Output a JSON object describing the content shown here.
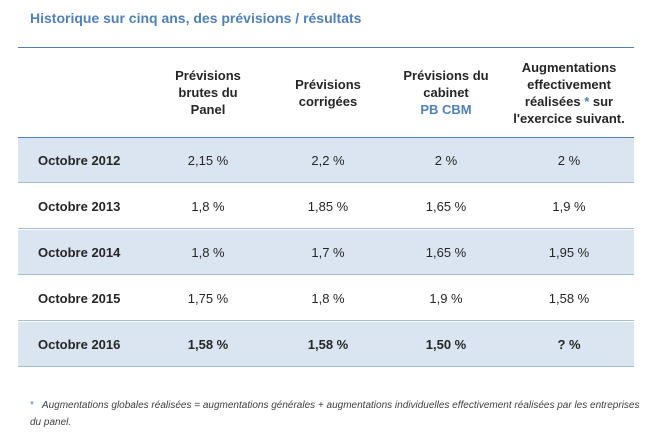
{
  "title": "Historique sur cinq ans, des prévisions / résultats",
  "colors": {
    "accent": "#4f81bd",
    "row_shade": "#dbe5f1",
    "text": "#262626"
  },
  "headers": {
    "col1": [
      "Prévisions",
      "brutes du",
      "Panel"
    ],
    "col2": [
      "Prévisions",
      "corrigées"
    ],
    "col3": [
      "Prévisions du",
      "cabinet"
    ],
    "col3_accent": "PB CBM",
    "col4_line1": "Augmentations",
    "col4_line2": "effectivement",
    "col4_line3_pre": "réalisées",
    "col4_star": "*",
    "col4_line3_post": "sur",
    "col4_line4": "l'exercice suivant."
  },
  "rows": [
    {
      "label": "Octobre 2012",
      "v1": "2,15 %",
      "v2": "2,2 %",
      "v3": "2 %",
      "v4": "2 %"
    },
    {
      "label": "Octobre 2013",
      "v1": "1,8 %",
      "v2": "1,85 %",
      "v3": "1,65 %",
      "v4": "1,9 %"
    },
    {
      "label": "Octobre 2014",
      "v1": "1,8 %",
      "v2": "1,7 %",
      "v3": "1,65 %",
      "v4": "1,95 %"
    },
    {
      "label": "Octobre 2015",
      "v1": "1,75 %",
      "v2": "1,8 %",
      "v3": "1,9 %",
      "v4": "1,58 %"
    },
    {
      "label": "Octobre 2016",
      "v1": "1,58 %",
      "v2": "1,58 %",
      "v3": "1,50 %",
      "v4": "? %"
    }
  ],
  "footnote": {
    "star": "*",
    "text": "Augmentations globales réalisées = augmentations générales + augmentations individuelles effectivement réalisées par les entreprises du panel."
  }
}
